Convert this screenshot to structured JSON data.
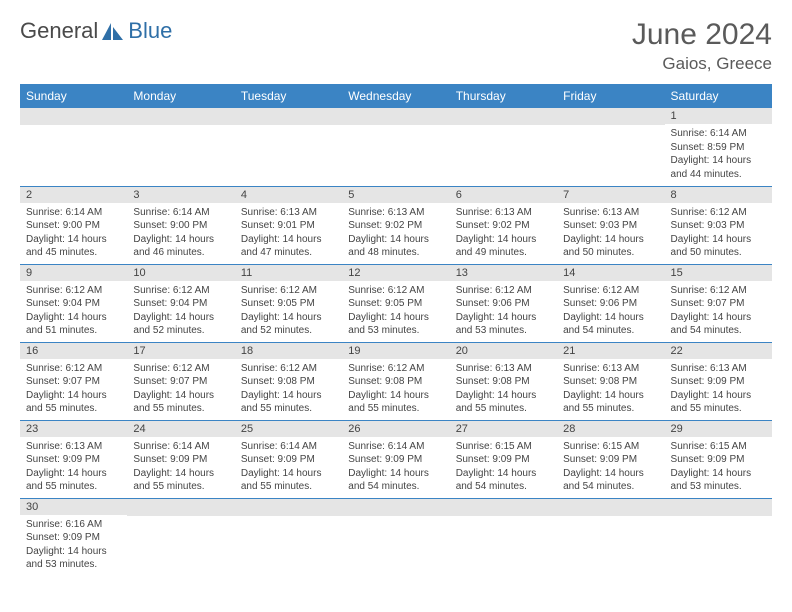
{
  "logo": {
    "text1": "General",
    "text2": "Blue",
    "sail_color": "#2f6fa7"
  },
  "title": "June 2024",
  "location": "Gaios, Greece",
  "colors": {
    "header_bg": "#3b84c4",
    "header_text": "#ffffff",
    "daynum_bg": "#e5e5e5",
    "rule": "#3b84c4",
    "text": "#444444"
  },
  "typography": {
    "title_fontsize": 30,
    "location_fontsize": 17,
    "weekday_fontsize": 12,
    "daynum_fontsize": 11,
    "body_fontsize": 10
  },
  "weekdays": [
    "Sunday",
    "Monday",
    "Tuesday",
    "Wednesday",
    "Thursday",
    "Friday",
    "Saturday"
  ],
  "layout": {
    "columns": 7,
    "rows": 6,
    "first_weekday_index": 6,
    "days_in_month": 30
  },
  "days": [
    {
      "n": 1,
      "sunrise": "6:14 AM",
      "sunset": "8:59 PM",
      "daylight": "14 hours and 44 minutes."
    },
    {
      "n": 2,
      "sunrise": "6:14 AM",
      "sunset": "9:00 PM",
      "daylight": "14 hours and 45 minutes."
    },
    {
      "n": 3,
      "sunrise": "6:14 AM",
      "sunset": "9:00 PM",
      "daylight": "14 hours and 46 minutes."
    },
    {
      "n": 4,
      "sunrise": "6:13 AM",
      "sunset": "9:01 PM",
      "daylight": "14 hours and 47 minutes."
    },
    {
      "n": 5,
      "sunrise": "6:13 AM",
      "sunset": "9:02 PM",
      "daylight": "14 hours and 48 minutes."
    },
    {
      "n": 6,
      "sunrise": "6:13 AM",
      "sunset": "9:02 PM",
      "daylight": "14 hours and 49 minutes."
    },
    {
      "n": 7,
      "sunrise": "6:13 AM",
      "sunset": "9:03 PM",
      "daylight": "14 hours and 50 minutes."
    },
    {
      "n": 8,
      "sunrise": "6:12 AM",
      "sunset": "9:03 PM",
      "daylight": "14 hours and 50 minutes."
    },
    {
      "n": 9,
      "sunrise": "6:12 AM",
      "sunset": "9:04 PM",
      "daylight": "14 hours and 51 minutes."
    },
    {
      "n": 10,
      "sunrise": "6:12 AM",
      "sunset": "9:04 PM",
      "daylight": "14 hours and 52 minutes."
    },
    {
      "n": 11,
      "sunrise": "6:12 AM",
      "sunset": "9:05 PM",
      "daylight": "14 hours and 52 minutes."
    },
    {
      "n": 12,
      "sunrise": "6:12 AM",
      "sunset": "9:05 PM",
      "daylight": "14 hours and 53 minutes."
    },
    {
      "n": 13,
      "sunrise": "6:12 AM",
      "sunset": "9:06 PM",
      "daylight": "14 hours and 53 minutes."
    },
    {
      "n": 14,
      "sunrise": "6:12 AM",
      "sunset": "9:06 PM",
      "daylight": "14 hours and 54 minutes."
    },
    {
      "n": 15,
      "sunrise": "6:12 AM",
      "sunset": "9:07 PM",
      "daylight": "14 hours and 54 minutes."
    },
    {
      "n": 16,
      "sunrise": "6:12 AM",
      "sunset": "9:07 PM",
      "daylight": "14 hours and 55 minutes."
    },
    {
      "n": 17,
      "sunrise": "6:12 AM",
      "sunset": "9:07 PM",
      "daylight": "14 hours and 55 minutes."
    },
    {
      "n": 18,
      "sunrise": "6:12 AM",
      "sunset": "9:08 PM",
      "daylight": "14 hours and 55 minutes."
    },
    {
      "n": 19,
      "sunrise": "6:12 AM",
      "sunset": "9:08 PM",
      "daylight": "14 hours and 55 minutes."
    },
    {
      "n": 20,
      "sunrise": "6:13 AM",
      "sunset": "9:08 PM",
      "daylight": "14 hours and 55 minutes."
    },
    {
      "n": 21,
      "sunrise": "6:13 AM",
      "sunset": "9:08 PM",
      "daylight": "14 hours and 55 minutes."
    },
    {
      "n": 22,
      "sunrise": "6:13 AM",
      "sunset": "9:09 PM",
      "daylight": "14 hours and 55 minutes."
    },
    {
      "n": 23,
      "sunrise": "6:13 AM",
      "sunset": "9:09 PM",
      "daylight": "14 hours and 55 minutes."
    },
    {
      "n": 24,
      "sunrise": "6:14 AM",
      "sunset": "9:09 PM",
      "daylight": "14 hours and 55 minutes."
    },
    {
      "n": 25,
      "sunrise": "6:14 AM",
      "sunset": "9:09 PM",
      "daylight": "14 hours and 55 minutes."
    },
    {
      "n": 26,
      "sunrise": "6:14 AM",
      "sunset": "9:09 PM",
      "daylight": "14 hours and 54 minutes."
    },
    {
      "n": 27,
      "sunrise": "6:15 AM",
      "sunset": "9:09 PM",
      "daylight": "14 hours and 54 minutes."
    },
    {
      "n": 28,
      "sunrise": "6:15 AM",
      "sunset": "9:09 PM",
      "daylight": "14 hours and 54 minutes."
    },
    {
      "n": 29,
      "sunrise": "6:15 AM",
      "sunset": "9:09 PM",
      "daylight": "14 hours and 53 minutes."
    },
    {
      "n": 30,
      "sunrise": "6:16 AM",
      "sunset": "9:09 PM",
      "daylight": "14 hours and 53 minutes."
    }
  ],
  "labels": {
    "sunrise": "Sunrise:",
    "sunset": "Sunset:",
    "daylight": "Daylight:"
  }
}
